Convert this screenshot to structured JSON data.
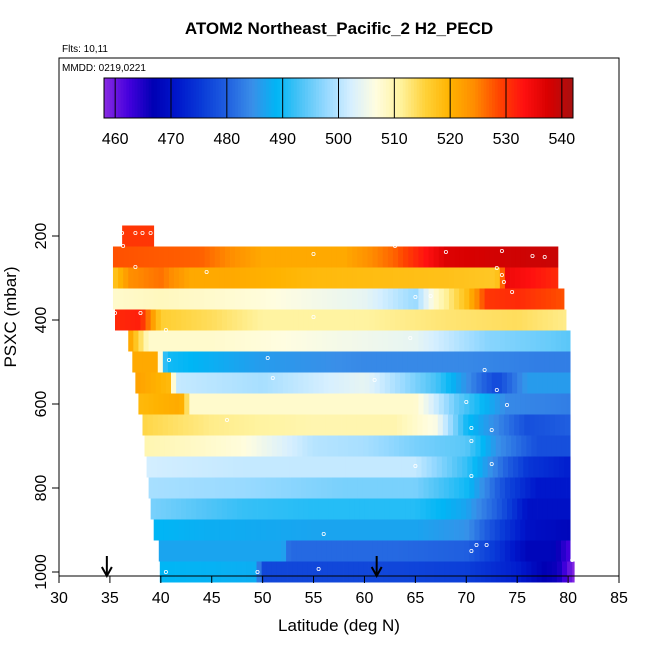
{
  "chart_data": {
    "type": "heatmap",
    "title": "ATOM2 Northeast_Pacific_2 H2_PECD",
    "notes": [
      "Flts: 10,11",
      "MMDD: 0219,0221"
    ],
    "xlabel": "Latitude (deg N)",
    "ylabel": "PSXC (mbar)",
    "xlim": [
      30,
      85
    ],
    "ylim": [
      1000,
      100
    ],
    "x_ticks": [
      30,
      35,
      40,
      45,
      50,
      55,
      60,
      65,
      70,
      75,
      80,
      85
    ],
    "y_ticks": [
      200,
      400,
      600,
      800,
      1000
    ],
    "colorbar": {
      "range": [
        458,
        542
      ],
      "ticks": [
        460,
        470,
        480,
        490,
        500,
        510,
        520,
        530,
        540
      ],
      "colors": [
        "#8a2be2",
        "#4400dd",
        "#0000b4",
        "#0018cc",
        "#0a3cd8",
        "#2060e0",
        "#3a8ee8",
        "#00b6f5",
        "#4fc4f7",
        "#96d9ff",
        "#d6efff",
        "#fffde0",
        "#fff3a0",
        "#ffd23a",
        "#ffb300",
        "#ff8c00",
        "#ff4500",
        "#ff1010",
        "#d80000",
        "#a81010"
      ]
    },
    "arrows_lat": [
      34.7,
      61.2
    ],
    "levels": [
      {
        "p": 200,
        "lat_range": [
          36.2,
          39.3
        ],
        "values": [
          [
            36.2,
            530
          ],
          [
            39.3,
            530
          ]
        ]
      },
      {
        "p": 250,
        "lat_range": [
          35.3,
          79
        ],
        "values": [
          [
            35.3,
            528
          ],
          [
            44,
            527
          ],
          [
            50,
            521
          ],
          [
            58,
            521
          ],
          [
            63,
            527
          ],
          [
            68,
            537
          ],
          [
            72,
            538
          ],
          [
            79,
            539
          ]
        ]
      },
      {
        "p": 300,
        "lat_range": [
          35.3,
          79
        ],
        "values": [
          [
            35.3,
            517
          ],
          [
            37,
            524
          ],
          [
            40,
            526
          ],
          [
            43,
            521
          ],
          [
            47,
            521
          ],
          [
            55,
            519
          ],
          [
            68,
            518
          ],
          [
            73,
            517
          ],
          [
            74,
            535
          ],
          [
            79,
            531
          ]
        ]
      },
      {
        "p": 350,
        "lat_range": [
          35.3,
          79.6
        ],
        "values": [
          [
            35.3,
            508
          ],
          [
            40,
            509
          ],
          [
            50,
            507
          ],
          [
            60,
            504
          ],
          [
            65,
            498
          ],
          [
            67,
            508
          ],
          [
            70,
            518
          ],
          [
            72,
            530
          ],
          [
            75,
            531
          ],
          [
            79.6,
            528
          ]
        ]
      },
      {
        "p": 400,
        "lat_range": [
          35.5,
          79.8
        ],
        "values": [
          [
            35.5,
            531
          ],
          [
            38,
            532
          ],
          [
            40,
            516
          ],
          [
            45,
            514
          ],
          [
            50,
            511
          ],
          [
            60,
            511
          ],
          [
            68,
            513
          ],
          [
            75,
            514
          ],
          [
            79.8,
            512
          ]
        ]
      },
      {
        "p": 450,
        "lat_range": [
          36.8,
          80.2
        ],
        "values": [
          [
            36.8,
            523
          ],
          [
            38.8,
            508
          ],
          [
            45,
            508
          ],
          [
            55,
            506
          ],
          [
            65,
            504
          ],
          [
            72,
            497
          ],
          [
            78,
            495
          ],
          [
            80.2,
            494
          ]
        ]
      },
      {
        "p": 500,
        "lat_range": [
          37.2,
          80.2
        ],
        "values": [
          [
            37.2,
            521
          ],
          [
            39.5,
            521
          ],
          [
            40.5,
            490
          ],
          [
            50,
            486
          ],
          [
            60,
            484
          ],
          [
            70,
            484
          ],
          [
            77,
            483
          ],
          [
            80.2,
            483
          ]
        ]
      },
      {
        "p": 550,
        "lat_range": [
          37.5,
          80.2
        ],
        "values": [
          [
            37.5,
            522
          ],
          [
            40.8,
            519
          ],
          [
            41.5,
            501
          ],
          [
            50,
            499
          ],
          [
            60,
            504
          ],
          [
            67,
            493
          ],
          [
            73,
            477
          ],
          [
            76,
            486
          ],
          [
            80.2,
            486
          ]
        ]
      },
      {
        "p": 600,
        "lat_range": [
          37.8,
          80.2
        ],
        "values": [
          [
            37.8,
            519
          ],
          [
            42,
            521
          ],
          [
            43,
            508
          ],
          [
            50,
            508
          ],
          [
            60,
            508
          ],
          [
            65,
            508
          ],
          [
            69,
            495
          ],
          [
            74,
            484
          ],
          [
            80.2,
            483
          ]
        ]
      },
      {
        "p": 650,
        "lat_range": [
          38.2,
          80.2
        ],
        "values": [
          [
            38.2,
            515
          ],
          [
            45,
            512
          ],
          [
            55,
            510
          ],
          [
            63,
            510
          ],
          [
            67,
            506
          ],
          [
            70,
            490
          ],
          [
            73,
            484
          ],
          [
            76,
            478
          ],
          [
            80.2,
            480
          ]
        ]
      },
      {
        "p": 700,
        "lat_range": [
          38.4,
          80.2
        ],
        "values": [
          [
            38.4,
            510
          ],
          [
            48,
            507
          ],
          [
            55,
            500
          ],
          [
            60,
            499
          ],
          [
            65,
            496
          ],
          [
            70,
            494
          ],
          [
            73,
            485
          ],
          [
            77,
            478
          ],
          [
            80.2,
            478
          ]
        ]
      },
      {
        "p": 750,
        "lat_range": [
          38.6,
          80.2
        ],
        "values": [
          [
            38.6,
            502
          ],
          [
            48,
            501
          ],
          [
            55,
            501
          ],
          [
            65,
            501
          ],
          [
            70,
            492
          ],
          [
            74,
            480
          ],
          [
            76,
            475
          ],
          [
            80.2,
            472
          ]
        ]
      },
      {
        "p": 800,
        "lat_range": [
          38.8,
          80.2
        ],
        "values": [
          [
            38.8,
            499
          ],
          [
            48,
            498
          ],
          [
            58,
            496
          ],
          [
            65,
            496
          ],
          [
            70,
            490
          ],
          [
            74,
            477
          ],
          [
            77,
            471
          ],
          [
            80.2,
            471
          ]
        ]
      },
      {
        "p": 850,
        "lat_range": [
          39.0,
          80.2
        ],
        "values": [
          [
            39.0,
            496
          ],
          [
            48,
            492
          ],
          [
            55,
            491
          ],
          [
            65,
            491
          ],
          [
            70,
            487
          ],
          [
            73,
            480
          ],
          [
            76,
            470
          ],
          [
            80.2,
            470
          ]
        ]
      },
      {
        "p": 900,
        "lat_range": [
          39.3,
          80.2
        ],
        "values": [
          [
            39.3,
            489
          ],
          [
            45,
            488
          ],
          [
            55,
            487
          ],
          [
            65,
            487
          ],
          [
            70,
            485
          ],
          [
            73,
            477
          ],
          [
            76,
            470
          ],
          [
            80.2,
            468
          ]
        ]
      },
      {
        "p": 950,
        "lat_range": [
          39.8,
          80.2
        ],
        "values": [
          [
            39.8,
            487
          ],
          [
            52,
            487
          ],
          [
            52.6,
            481
          ],
          [
            63,
            481
          ],
          [
            70,
            480
          ],
          [
            73,
            475
          ],
          [
            76,
            468
          ],
          [
            78.5,
            468
          ],
          [
            80.2,
            462
          ]
        ]
      },
      {
        "p": 1000,
        "lat_range": [
          39.9,
          80.6
        ],
        "values": [
          [
            39.9,
            489
          ],
          [
            49.5,
            488
          ],
          [
            49.8,
            477
          ],
          [
            55,
            477
          ],
          [
            62,
            477
          ],
          [
            70,
            476
          ],
          [
            75,
            472
          ],
          [
            77.5,
            467
          ],
          [
            79,
            466
          ],
          [
            80.6,
            458
          ]
        ]
      }
    ]
  }
}
